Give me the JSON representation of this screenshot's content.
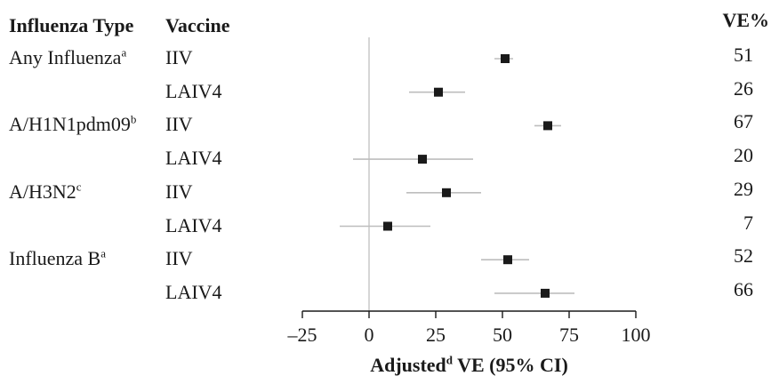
{
  "headers": {
    "type": "Influenza Type",
    "vaccine": "Vaccine",
    "ve": "VE%"
  },
  "chart_data": {
    "type": "scatter",
    "xlabel_main": "Adjusted",
    "xlabel_sup": "d",
    "xlabel_rest": " VE (95% CI)",
    "xlim": [
      -25,
      100
    ],
    "xticks": [
      "-25",
      "0",
      "25",
      "50",
      "75",
      "100"
    ],
    "xtick_labels": [
      "–25",
      "0",
      "25",
      "50",
      "75",
      "100"
    ],
    "reference_line": 0,
    "rows": [
      {
        "type": "Any Influenza",
        "type_sup": "a",
        "vaccine": "IIV",
        "ve": 51,
        "ve_label": "51",
        "ci": [
          47,
          54
        ]
      },
      {
        "type": "",
        "type_sup": "",
        "vaccine": "LAIV4",
        "ve": 26,
        "ve_label": "26",
        "ci": [
          15,
          36
        ]
      },
      {
        "type": "A/H1N1pdm09",
        "type_sup": "b",
        "vaccine": "IIV",
        "ve": 67,
        "ve_label": "67",
        "ci": [
          62,
          72
        ]
      },
      {
        "type": "",
        "type_sup": "",
        "vaccine": "LAIV4",
        "ve": 20,
        "ve_label": "20",
        "ci": [
          -6,
          39
        ]
      },
      {
        "type": "A/H3N2",
        "type_sup": "c",
        "vaccine": "IIV",
        "ve": 29,
        "ve_label": "29",
        "ci": [
          14,
          42
        ]
      },
      {
        "type": "",
        "type_sup": "",
        "vaccine": "LAIV4",
        "ve": 7,
        "ve_label": "7",
        "ci": [
          -11,
          23
        ]
      },
      {
        "type": "Influenza B",
        "type_sup": "a",
        "vaccine": "IIV",
        "ve": 52,
        "ve_label": "52",
        "ci": [
          42,
          60
        ]
      },
      {
        "type": "",
        "type_sup": "",
        "vaccine": "LAIV4",
        "ve": 66,
        "ve_label": "66",
        "ci": [
          47,
          77
        ]
      }
    ],
    "colors": {
      "marker": "#1a1a1a",
      "ci": "#bdbdbd",
      "axis": "#1a1a1a",
      "refline": "#c8c8c8"
    }
  }
}
